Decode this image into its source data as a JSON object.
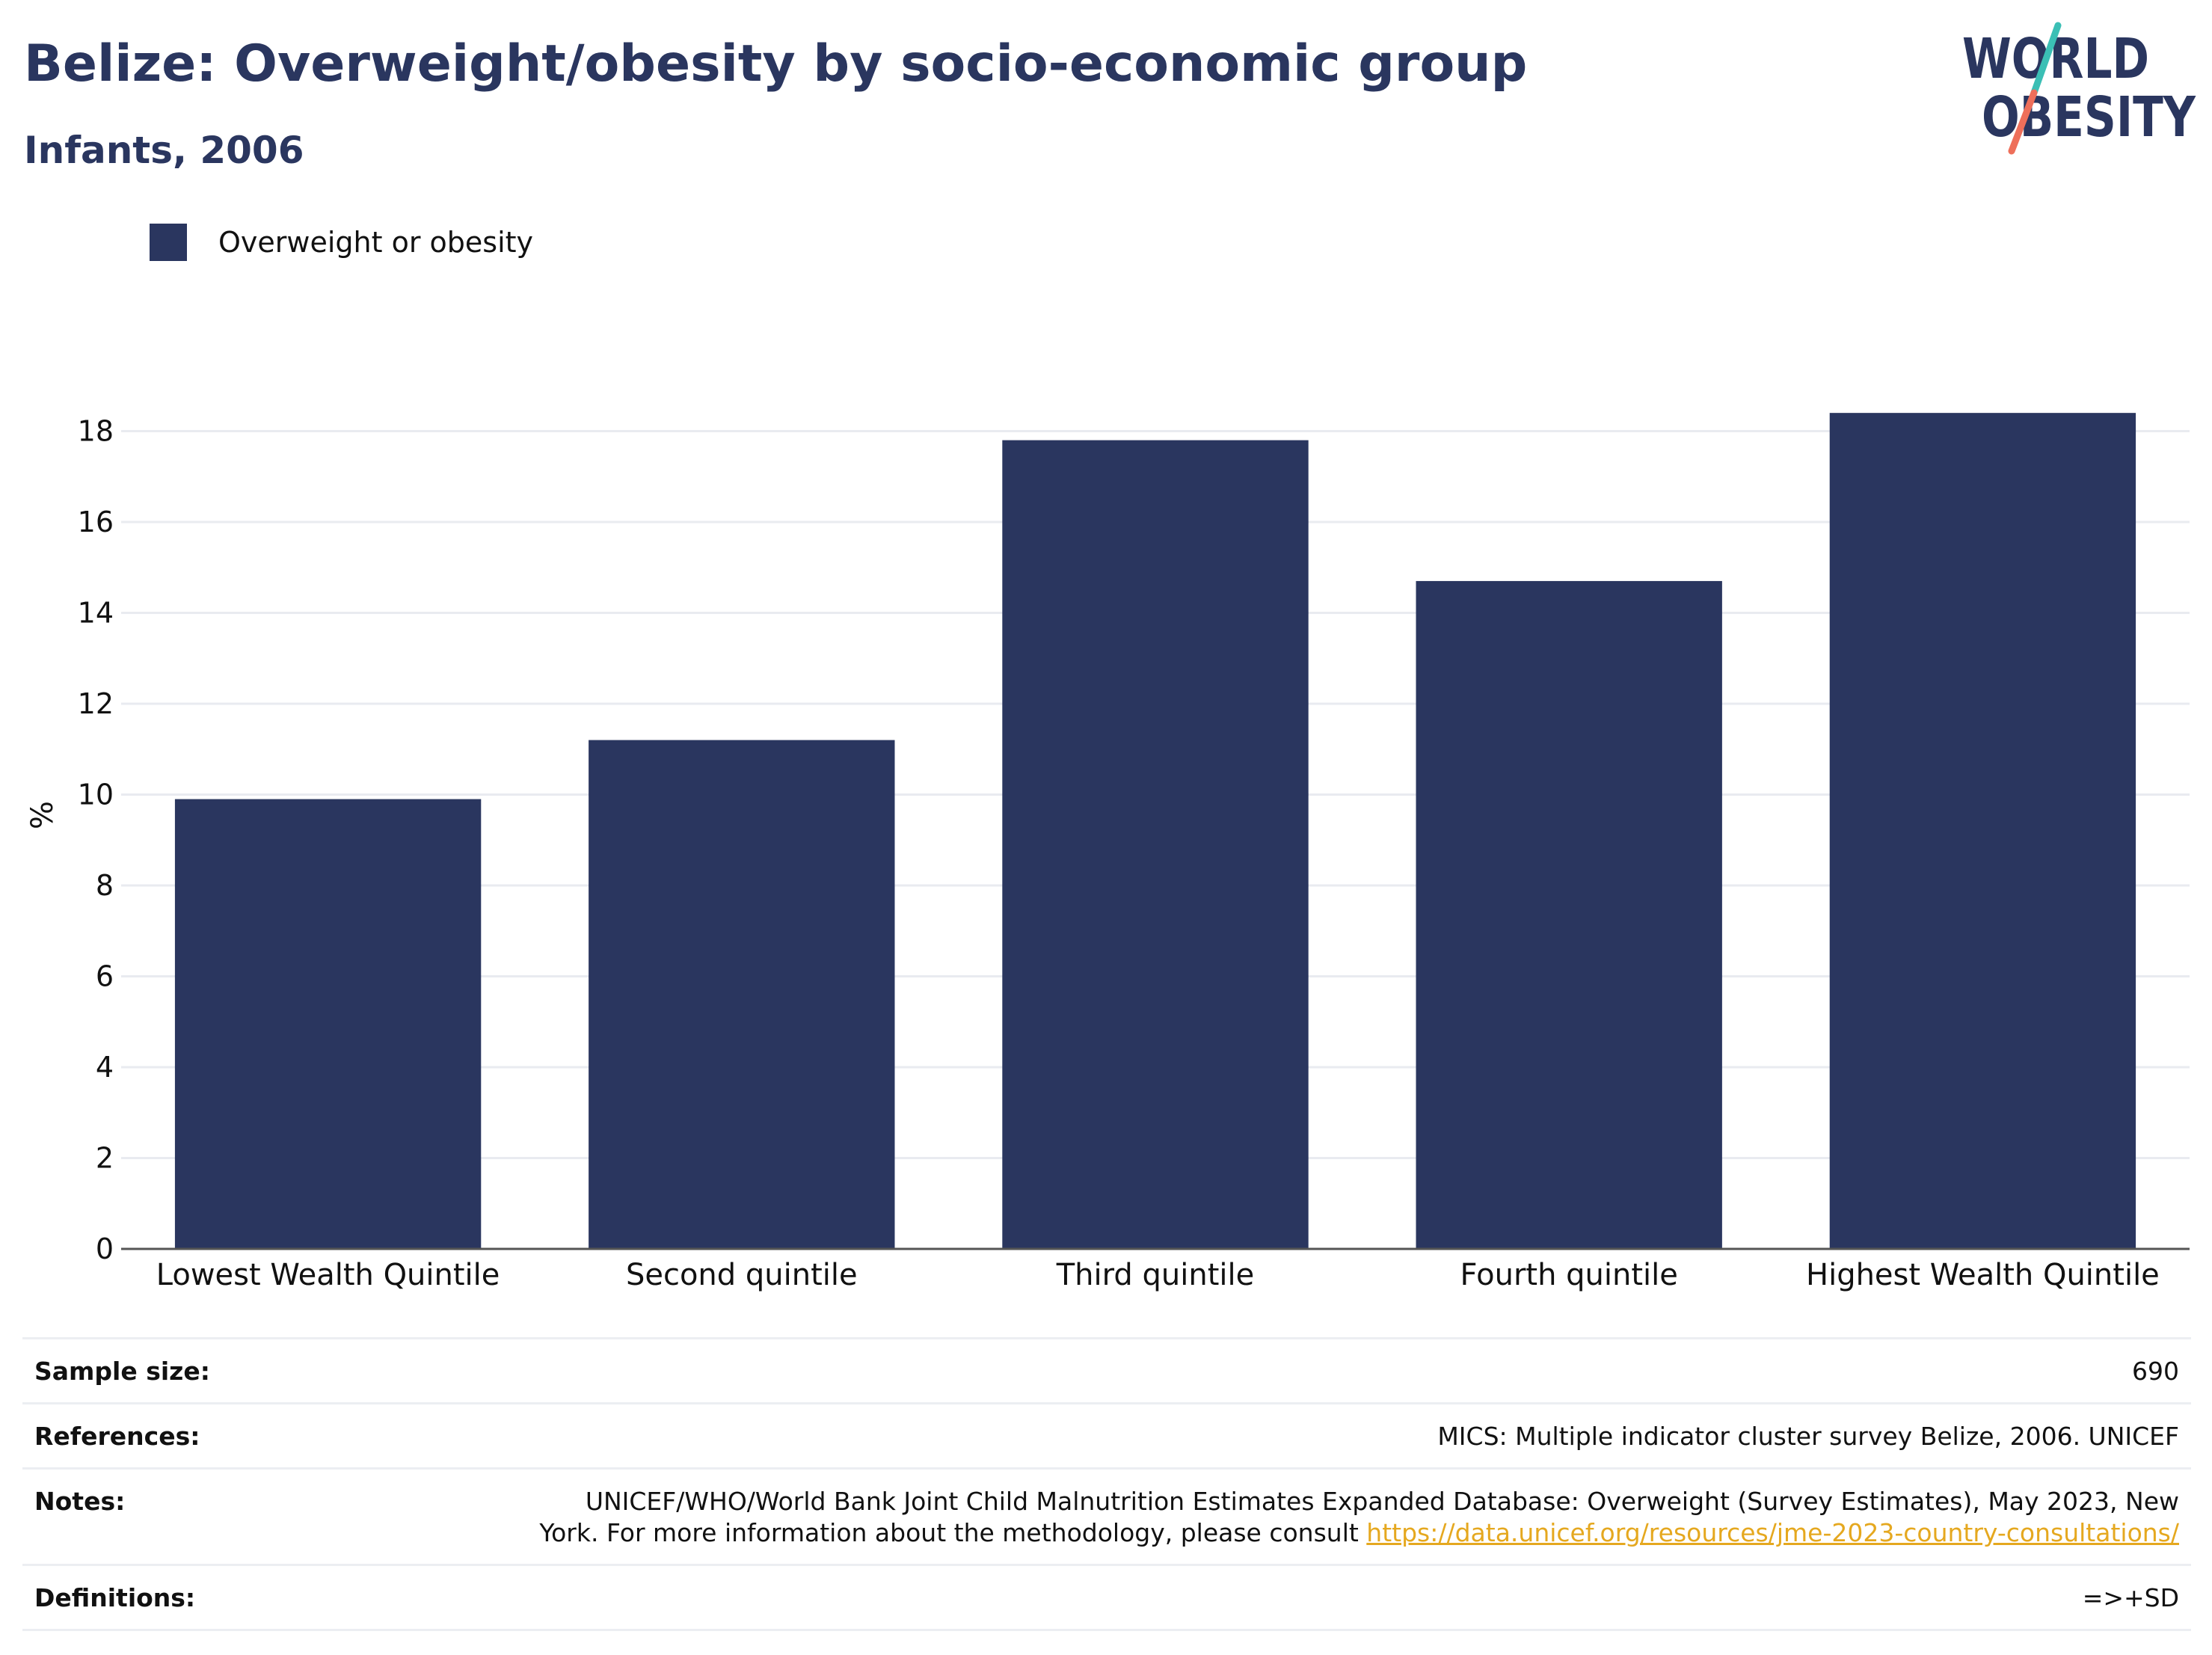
{
  "header": {
    "title": "Belize: Overweight/obesity by socio-economic group",
    "subtitle": "Infants, 2006"
  },
  "logo": {
    "line1": "WORLD",
    "line2": "OBESITY",
    "colors": {
      "text": "#2a365f",
      "slash_top": "#3bbfb5",
      "slash_bottom": "#ee6f5a"
    }
  },
  "colors": {
    "bar": "#2a365f",
    "grid": "#e9ebf0",
    "axis": "#555555",
    "link": "#e5a81f"
  },
  "chart_data": {
    "type": "bar",
    "categories": [
      "Lowest Wealth Quintile",
      "Second quintile",
      "Third quintile",
      "Fourth quintile",
      "Highest Wealth Quintile"
    ],
    "series": [
      {
        "name": "Overweight or obesity",
        "values": [
          9.9,
          11.2,
          17.8,
          14.7,
          18.4
        ]
      }
    ],
    "ylabel": "%",
    "xlabel": "",
    "ylim": [
      0,
      18.6
    ],
    "yticks": [
      0,
      2,
      4,
      6,
      8,
      10,
      12,
      14,
      16,
      18
    ],
    "grid": true,
    "legend_position": "top-left"
  },
  "footer": {
    "sample_size": {
      "label": "Sample size:",
      "value": "690"
    },
    "references": {
      "label": "References:",
      "value": "MICS: Multiple indicator cluster survey Belize, 2006. UNICEF"
    },
    "notes": {
      "label": "Notes:",
      "text_line1": "UNICEF/WHO/World Bank Joint Child Malnutrition Estimates Expanded Database: Overweight (Survey Estimates), May 2023, New",
      "text_line2": "York. For more information about the methodology, please consult ",
      "link": "https://data.unicef.org/resources/jme-2023-country-consultations/"
    },
    "definitions": {
      "label": "Definitions:",
      "value": "=>+SD"
    }
  }
}
